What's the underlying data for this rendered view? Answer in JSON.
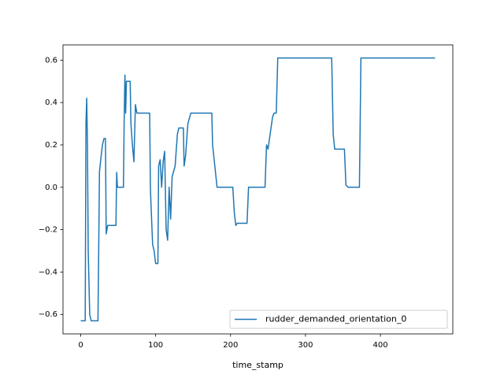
{
  "chart_data": {
    "type": "line",
    "xlabel": "time_stamp",
    "x": [
      0,
      6,
      7,
      8,
      9,
      10,
      12,
      14,
      23,
      24,
      25,
      27,
      29,
      31,
      33,
      34,
      36,
      38,
      47,
      48,
      49,
      57,
      58,
      59,
      60,
      61,
      66,
      67,
      69,
      71,
      73,
      75,
      92,
      93,
      94,
      96,
      98,
      100,
      103,
      104,
      106,
      108,
      110,
      112,
      114,
      116,
      118,
      120,
      122,
      126,
      129,
      131,
      137,
      138,
      140,
      143,
      147,
      175,
      176,
      179,
      182,
      203,
      205,
      207,
      209,
      222,
      224,
      246,
      248,
      250,
      256,
      258,
      261,
      263,
      335,
      337,
      339,
      352,
      354,
      357,
      372,
      374,
      473
    ],
    "series": [
      {
        "name": "rudder_demanded_orientation_0",
        "color": "#1f77b4",
        "values": [
          -0.63,
          -0.63,
          0.3,
          0.42,
          0.2,
          -0.3,
          -0.6,
          -0.63,
          -0.63,
          -0.3,
          0.07,
          0.14,
          0.2,
          0.23,
          0.23,
          -0.22,
          -0.18,
          -0.18,
          -0.18,
          0.07,
          0,
          0,
          0.32,
          0.53,
          0.35,
          0.5,
          0.5,
          0.3,
          0.2,
          0.12,
          0.39,
          0.35,
          0.35,
          0,
          -0.1,
          -0.27,
          -0.3,
          -0.36,
          -0.36,
          0.1,
          0.13,
          0,
          0.12,
          0.17,
          -0.2,
          -0.25,
          0,
          -0.15,
          0.05,
          0.1,
          0.25,
          0.28,
          0.28,
          0.1,
          0.15,
          0.3,
          0.35,
          0.35,
          0.2,
          0.1,
          0,
          0,
          -0.12,
          -0.18,
          -0.17,
          -0.17,
          0,
          0,
          0.2,
          0.18,
          0.33,
          0.35,
          0.35,
          0.61,
          0.61,
          0.25,
          0.18,
          0.18,
          0.01,
          0,
          0,
          0.61,
          0.61
        ]
      }
    ],
    "xlim": [
      -23.65,
      496.65
    ],
    "ylim": [
      -0.692,
      0.672
    ],
    "xticks": [
      0,
      100,
      200,
      300,
      400
    ],
    "yticks": [
      {
        "value": -0.6,
        "label": "−0.6"
      },
      {
        "value": -0.4,
        "label": "−0.4"
      },
      {
        "value": -0.2,
        "label": "−0.2"
      },
      {
        "value": 0,
        "label": "0.0"
      },
      0.2,
      0.4,
      0.6
    ],
    "legend": "lower right"
  }
}
